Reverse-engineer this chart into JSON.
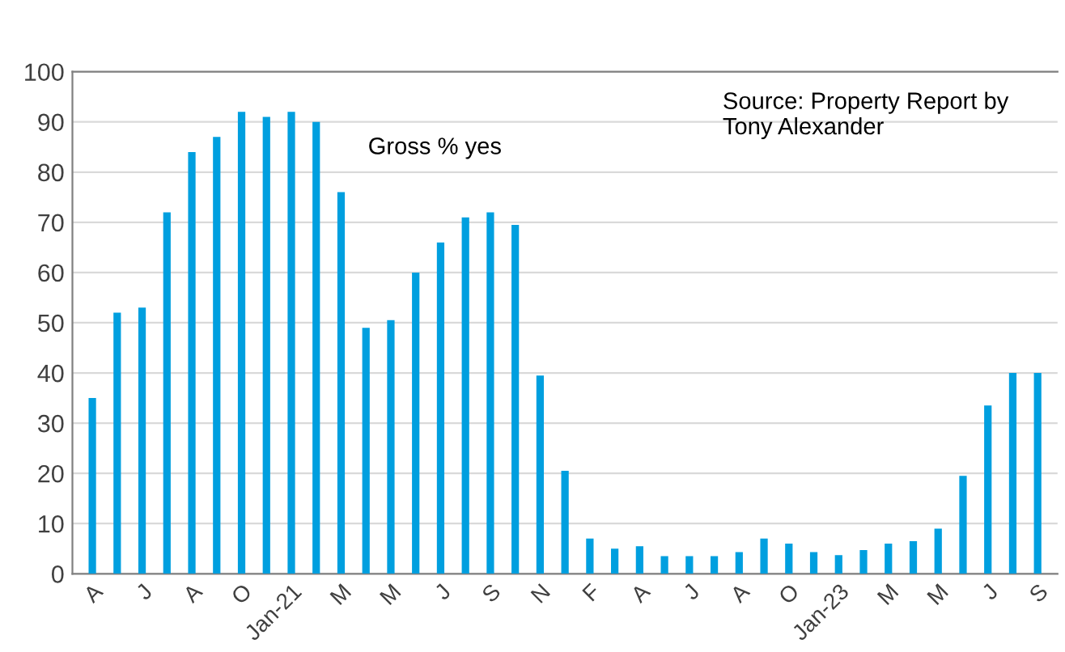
{
  "chart_data": {
    "type": "bar",
    "categories": [
      "A",
      null,
      "J",
      null,
      "A",
      null,
      "O",
      null,
      "Jan-21",
      null,
      "M",
      null,
      "M",
      null,
      "J",
      null,
      "S",
      null,
      "N",
      null,
      "F",
      null,
      "A",
      null,
      "J",
      null,
      "A",
      null,
      "O",
      null,
      "Jan-23",
      null,
      "M",
      null,
      "M",
      null,
      "J",
      null,
      "S"
    ],
    "values": [
      35,
      52,
      53,
      72,
      84,
      87,
      92,
      91,
      92,
      90,
      76,
      49,
      50.5,
      60,
      66,
      71,
      72,
      69.5,
      39.5,
      20.5,
      7,
      5,
      5.5,
      3.5,
      3.5,
      3.5,
      4.3,
      7,
      6,
      4.3,
      3.7,
      4.7,
      6,
      6.5,
      9,
      19.5,
      33.5,
      40,
      40
    ],
    "color": "#009fdf",
    "ylim": [
      0,
      100
    ],
    "yticks": [
      0,
      10,
      20,
      30,
      40,
      50,
      60,
      70,
      80,
      90,
      100
    ],
    "grid": "y",
    "annotations": [
      "Gross % yes",
      "Source: Property Report by Tony Alexander"
    ]
  }
}
